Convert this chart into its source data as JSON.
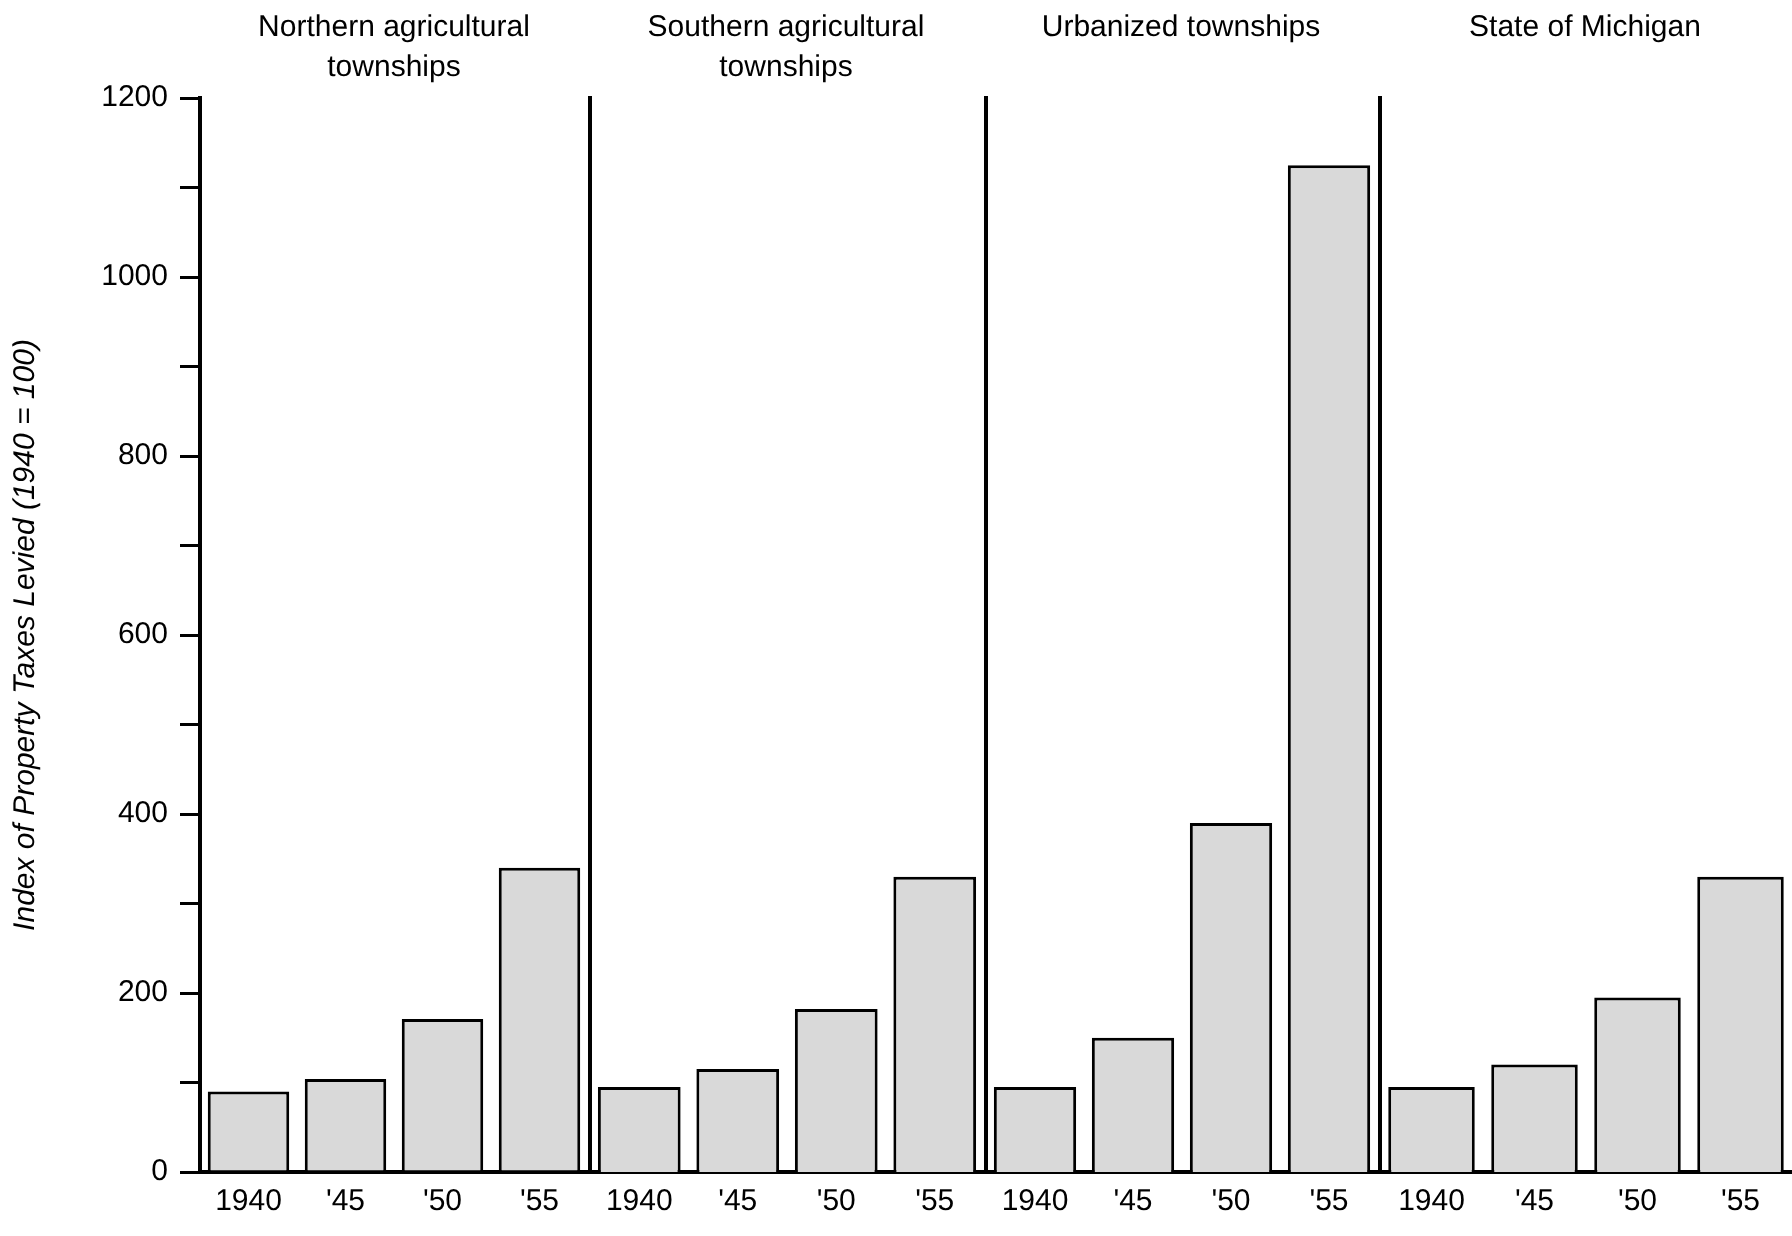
{
  "chart_data": [
    {
      "type": "bar",
      "title": "Northern agricultural townships",
      "ylabel": "Index of Property Taxes Levied (1940 = 100)",
      "categories": [
        "1940",
        "'45",
        "'50",
        "'55"
      ],
      "values": [
        90,
        104,
        171,
        340
      ],
      "color": "#d9d9d9",
      "ylim": [
        0,
        1200
      ],
      "yticks": [
        0,
        {
          "value": 100,
          "label": null
        },
        200,
        {
          "value": 300,
          "label": null
        },
        400,
        {
          "value": 500,
          "label": null
        },
        600,
        {
          "value": 700,
          "label": null
        },
        800,
        {
          "value": 900,
          "label": null
        },
        1000,
        {
          "value": 1100,
          "label": null
        },
        1200
      ],
      "grid": false,
      "legend": false
    },
    {
      "type": "bar",
      "title": "Southern agricultural townships",
      "categories": [
        "1940",
        "'45",
        "'50",
        "'55"
      ],
      "values": [
        95,
        115,
        182,
        330
      ],
      "color": "#d9d9d9",
      "ylim": [
        0,
        1200
      ],
      "tick_labels": "x",
      "grid": false,
      "legend": false
    },
    {
      "type": "bar",
      "title": "Urbanized townships",
      "categories": [
        "1940",
        "'45",
        "'50",
        "'55"
      ],
      "values": [
        95,
        150,
        390,
        1125
      ],
      "color": "#d9d9d9",
      "ylim": [
        0,
        1200
      ],
      "tick_labels": "x",
      "grid": false,
      "legend": false
    },
    {
      "type": "bar",
      "title": "State of Michigan",
      "categories": [
        "1940",
        "'45",
        "'50",
        "'55"
      ],
      "values": [
        95,
        120,
        195,
        330
      ],
      "color": "#d9d9d9",
      "ylim": [
        0,
        1200
      ],
      "tick_labels": "x",
      "grid": false,
      "legend": false
    }
  ]
}
